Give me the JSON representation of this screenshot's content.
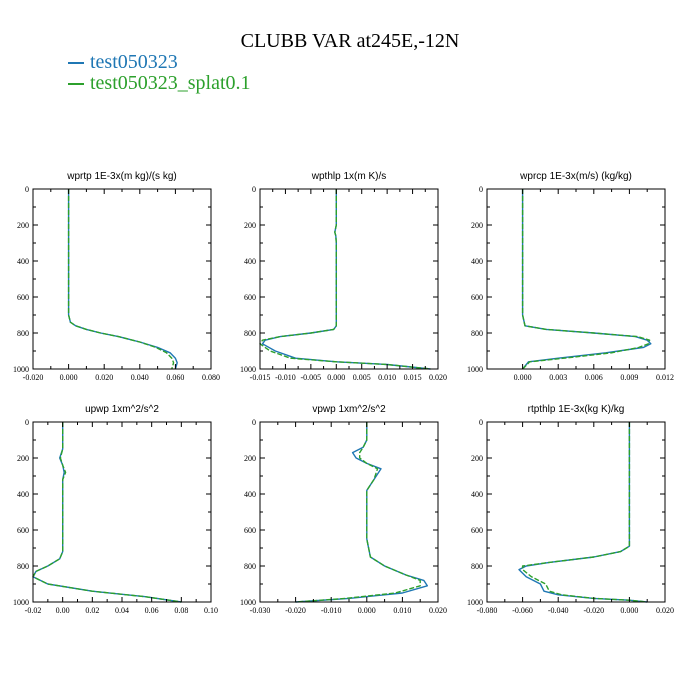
{
  "title": "CLUBB VAR at245E,-12N",
  "legend": [
    {
      "label": "test050323",
      "color": "#1f77b4"
    },
    {
      "label": "test050323_splat0.1",
      "color": "#2ca02c"
    }
  ],
  "chart_data": [
    {
      "type": "line",
      "title": "wprtp  1E-3x(m kg)/(s kg)",
      "xlim": [
        -0.02,
        0.08
      ],
      "ylim": [
        1000,
        0
      ],
      "xticks": [
        "-0.020",
        "0.000",
        "0.020",
        "0.040",
        "0.060",
        "0.080"
      ],
      "yticks": [
        "0",
        "200",
        "400",
        "600",
        "800",
        "1000"
      ],
      "series": [
        {
          "name": "test050323",
          "x": [
            0.0,
            0.0,
            0.0,
            0.0,
            0.0,
            0.0,
            0.0,
            0.0,
            0.001,
            0.004,
            0.01,
            0.018,
            0.028,
            0.04,
            0.05,
            0.057,
            0.06,
            0.061,
            0.06
          ],
          "y": [
            0,
            100,
            200,
            300,
            400,
            500,
            600,
            700,
            740,
            760,
            780,
            800,
            820,
            850,
            880,
            910,
            940,
            965,
            1000
          ]
        },
        {
          "name": "test050323_splat0.1",
          "x": [
            0.0,
            0.0,
            0.0,
            0.0,
            0.0,
            0.0,
            0.0,
            0.0,
            0.001,
            0.004,
            0.01,
            0.018,
            0.028,
            0.04,
            0.049,
            0.055,
            0.058,
            0.059,
            0.058
          ],
          "y": [
            0,
            100,
            200,
            300,
            400,
            500,
            600,
            700,
            740,
            760,
            780,
            800,
            820,
            850,
            880,
            910,
            940,
            965,
            1000
          ]
        }
      ]
    },
    {
      "type": "line",
      "title": "wpthlp  1x(m K)/s",
      "xlim": [
        -0.015,
        0.02
      ],
      "ylim": [
        1000,
        0
      ],
      "xticks": [
        "-0.015",
        "-0.010",
        "-0.005",
        "0.000",
        "0.005",
        "0.010",
        "0.015",
        "0.020"
      ],
      "yticks": [
        "0",
        "200",
        "400",
        "600",
        "800",
        "1000"
      ],
      "series": [
        {
          "name": "test050323",
          "x": [
            0.0,
            0.0,
            0.0,
            -0.0003,
            -0.0001,
            0.0,
            0.0,
            0.0,
            0.0,
            -0.0005,
            -0.005,
            -0.011,
            -0.014,
            -0.0145,
            -0.012,
            -0.008,
            0.0,
            0.01,
            0.0185
          ],
          "y": [
            0,
            100,
            200,
            240,
            260,
            300,
            500,
            700,
            760,
            780,
            800,
            820,
            840,
            860,
            900,
            940,
            960,
            975,
            1000
          ]
        },
        {
          "name": "test050323_splat0.1",
          "x": [
            0.0,
            0.0,
            0.0,
            -0.0003,
            -0.0001,
            0.0,
            0.0,
            0.0,
            0.0,
            -0.0005,
            -0.005,
            -0.011,
            -0.0145,
            -0.015,
            -0.013,
            -0.009,
            0.0,
            0.01,
            0.0185
          ],
          "y": [
            0,
            100,
            200,
            240,
            260,
            300,
            500,
            700,
            760,
            780,
            800,
            820,
            840,
            860,
            900,
            940,
            960,
            975,
            1000
          ]
        }
      ]
    },
    {
      "type": "line",
      "title": "wprcp  1E-3x(m/s) (kg/kg)",
      "xlim": [
        -0.003,
        0.012
      ],
      "ylim": [
        1000,
        0
      ],
      "xticks": [
        "0.000",
        "0.003",
        "0.006",
        "0.009",
        "0.012"
      ],
      "yticks": [
        "0",
        "200",
        "400",
        "600",
        "800",
        "1000"
      ],
      "series": [
        {
          "name": "test050323",
          "x": [
            0.0,
            0.0,
            0.0,
            0.0,
            0.0,
            0.0,
            0.0,
            0.0002,
            0.002,
            0.006,
            0.0095,
            0.0105,
            0.0108,
            0.0102,
            0.007,
            0.003,
            0.0005,
            0.0
          ],
          "y": [
            0,
            200,
            400,
            600,
            640,
            650,
            700,
            760,
            780,
            800,
            820,
            840,
            860,
            880,
            910,
            940,
            960,
            1000
          ]
        },
        {
          "name": "test050323_splat0.1",
          "x": [
            0.0,
            0.0,
            0.0,
            0.0,
            0.0,
            0.0,
            0.0,
            0.0002,
            0.002,
            0.006,
            0.0097,
            0.0107,
            0.0106,
            0.0098,
            0.0075,
            0.0035,
            0.0006,
            0.0
          ],
          "y": [
            0,
            200,
            400,
            600,
            640,
            650,
            700,
            760,
            780,
            800,
            820,
            840,
            860,
            880,
            910,
            940,
            960,
            1000
          ]
        }
      ]
    },
    {
      "type": "line",
      "title": "upwp   1xm^2/s^2",
      "xlim": [
        -0.02,
        0.1
      ],
      "ylim": [
        1000,
        0
      ],
      "xticks": [
        "-0.02",
        "0.00",
        "0.02",
        "0.04",
        "0.06",
        "0.08",
        "0.10"
      ],
      "yticks": [
        "0",
        "200",
        "400",
        "600",
        "800",
        "1000"
      ],
      "series": [
        {
          "name": "test050323",
          "x": [
            0.0,
            0.0,
            0.0,
            -0.002,
            0.0,
            0.001,
            0.0,
            0.0,
            0.0,
            0.0,
            -0.002,
            -0.01,
            -0.018,
            -0.02,
            -0.01,
            0.02,
            0.055,
            0.08
          ],
          "y": [
            0,
            100,
            150,
            200,
            240,
            280,
            320,
            400,
            600,
            720,
            760,
            800,
            830,
            860,
            900,
            940,
            970,
            1000
          ]
        },
        {
          "name": "test050323_splat0.1",
          "x": [
            0.0,
            0.0,
            0.0,
            -0.0015,
            0.0,
            0.002,
            0.0,
            0.0,
            0.0,
            0.0,
            -0.002,
            -0.01,
            -0.018,
            -0.02,
            -0.01,
            0.02,
            0.055,
            0.08
          ],
          "y": [
            0,
            100,
            150,
            200,
            240,
            280,
            320,
            400,
            600,
            720,
            760,
            800,
            830,
            860,
            900,
            940,
            970,
            1000
          ]
        }
      ]
    },
    {
      "type": "line",
      "title": "vpwp   1xm^2/s^2",
      "xlim": [
        -0.03,
        0.02
      ],
      "ylim": [
        1000,
        0
      ],
      "xticks": [
        "-0.030",
        "-0.020",
        "-0.010",
        "0.000",
        "0.010",
        "0.020"
      ],
      "yticks": [
        "0",
        "200",
        "400",
        "600",
        "800",
        "1000"
      ],
      "series": [
        {
          "name": "test050323",
          "x": [
            0.0,
            0.0,
            -0.001,
            -0.004,
            -0.003,
            0.0,
            0.004,
            0.002,
            0.0,
            0.0,
            0.0,
            0.001,
            0.005,
            0.011,
            0.016,
            0.017,
            0.01,
            -0.005,
            -0.02
          ],
          "y": [
            0,
            100,
            140,
            170,
            200,
            230,
            260,
            320,
            380,
            450,
            650,
            750,
            800,
            850,
            880,
            910,
            950,
            980,
            1000
          ]
        },
        {
          "name": "test050323_splat0.1",
          "x": [
            0.0,
            0.0,
            -0.001,
            -0.002,
            -0.002,
            0.0,
            0.003,
            0.002,
            0.0,
            0.0,
            0.0,
            0.001,
            0.005,
            0.011,
            0.015,
            0.015,
            0.008,
            -0.006,
            -0.02
          ],
          "y": [
            0,
            100,
            140,
            170,
            200,
            230,
            260,
            320,
            380,
            450,
            650,
            750,
            800,
            850,
            880,
            910,
            950,
            980,
            1000
          ]
        }
      ]
    },
    {
      "type": "line",
      "title": "rtpthlp  1E-3x(kg K)/kg",
      "xlim": [
        -0.08,
        0.02
      ],
      "ylim": [
        1000,
        0
      ],
      "xticks": [
        "-0.080",
        "-0.060",
        "-0.040",
        "-0.020",
        "0.000",
        "0.020"
      ],
      "yticks": [
        "0",
        "200",
        "400",
        "600",
        "800",
        "1000"
      ],
      "series": [
        {
          "name": "test050323",
          "x": [
            0.0,
            0.0,
            0.0,
            0.0,
            -0.005,
            -0.02,
            -0.045,
            -0.058,
            -0.062,
            -0.058,
            -0.05,
            -0.048,
            -0.04,
            -0.02,
            0.0,
            0.01
          ],
          "y": [
            0,
            200,
            400,
            690,
            720,
            750,
            780,
            800,
            820,
            860,
            900,
            940,
            960,
            980,
            990,
            1000
          ]
        },
        {
          "name": "test050323_splat0.1",
          "x": [
            0.0,
            0.0,
            0.0,
            0.0,
            -0.005,
            -0.02,
            -0.045,
            -0.06,
            -0.06,
            -0.055,
            -0.047,
            -0.045,
            -0.038,
            -0.02,
            0.0,
            0.01
          ],
          "y": [
            0,
            200,
            400,
            690,
            720,
            750,
            780,
            800,
            820,
            860,
            900,
            940,
            960,
            980,
            990,
            1000
          ]
        }
      ]
    }
  ]
}
